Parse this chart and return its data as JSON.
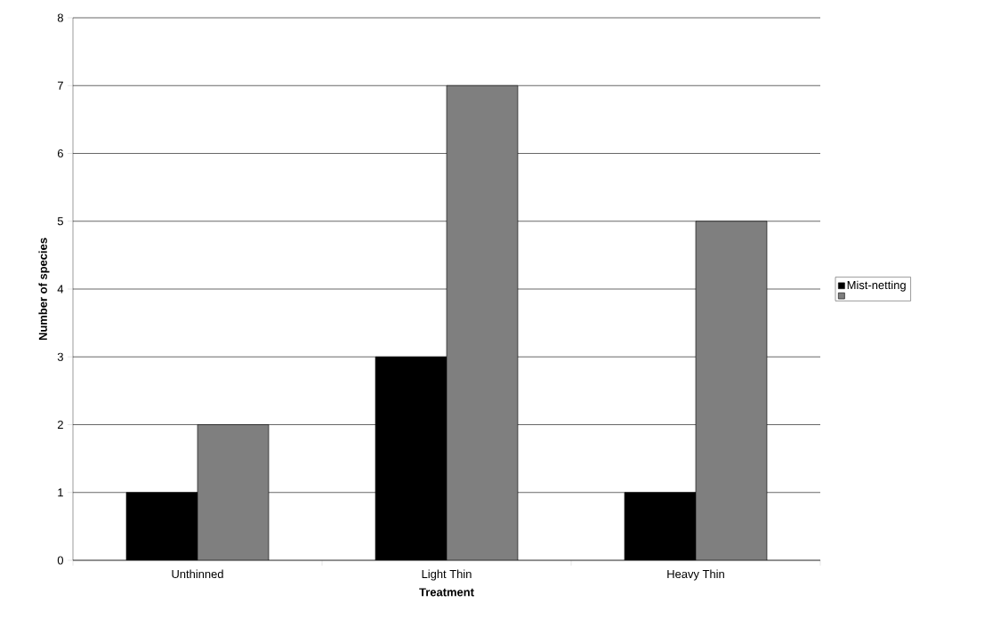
{
  "chart_data": {
    "type": "bar",
    "xlabel": "Treatment",
    "ylabel": "Number of species",
    "categories": [
      "Unthinned",
      "Light Thin",
      "Heavy Thin"
    ],
    "series": [
      {
        "name": "Mist-netting",
        "color": "#000000",
        "values": [
          1,
          3,
          1
        ]
      },
      {
        "color": "#7f7f7f",
        "values": [
          2,
          7,
          5
        ]
      }
    ],
    "ylim": [
      0,
      8
    ],
    "yticks": [
      0,
      1,
      2,
      3,
      4,
      5,
      6,
      7,
      8
    ],
    "grid": "y",
    "legend": "right"
  }
}
